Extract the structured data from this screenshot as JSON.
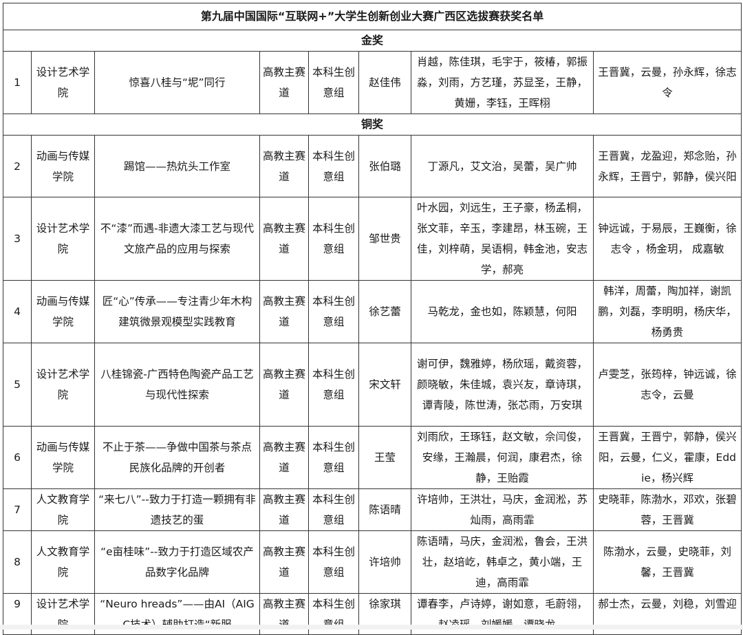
{
  "title": "第九届中国国际“互联网+”大学生创新创业大赛广西区选拔赛获奖名单",
  "sections": [
    {
      "label": "金奖",
      "rows": [
        {
          "no": "1",
          "college": "设计艺术学院",
          "project": "惊喜八桂与“坭”同行",
          "track": "高教主赛道",
          "group": "本科生创意组",
          "leader": "赵佳伟",
          "members": "肖越，陈佳琪，毛宇于，筱椿，郭振淼，刘雨，方艺瑾，苏显圣，王静，黄姗，李钰，王晖栩",
          "mentors": "王晋冀，云曼，孙永辉，徐志令"
        }
      ]
    },
    {
      "label": "铜奖",
      "rows": [
        {
          "no": "2",
          "college": "动画与传媒学院",
          "project": "踢馆——热炕头工作室",
          "track": "高教主赛道",
          "group": "本科生创意组",
          "leader": "张伯璐",
          "members": "丁源凡，艾文治，吴蕾，吴广帅",
          "mentors": "王晋冀，龙盈迎，郑念贻，孙永辉，王晋宁，郭静，侯兴阳"
        },
        {
          "no": "3",
          "college": "设计艺术学院",
          "project": "不“漆”而遇-非遗大漆工艺与现代文旅产品的应用与探索",
          "track": "高教主赛道",
          "group": "本科生创意组",
          "leader": "邹世贵",
          "members": "叶水园，刘远生，王子豪，杨孟桐，张文菲，辛玉，李建昂，林玉碗，王佳，刘梓萌，吴语桐，韩金池，安志学，郝亮",
          "mentors": "钟远诚，于易辰，王巍衡，徐志令 ，杨金玥， 成嘉敏"
        },
        {
          "no": "4",
          "college": "动画与传媒学院",
          "project": "匠“心”传承——专注青少年木构建筑微景观模型实践教育",
          "track": "高教主赛道",
          "group": "本科生创意组",
          "leader": "徐艺蕾",
          "members": "马乾龙，金也如，陈颖慧，何阳",
          "mentors": "韩洋，周蕾，陶加祥，谢凯鹏，刘磊，李明明，杨庆华，杨勇贵"
        },
        {
          "no": "5",
          "college": "设计艺术学院",
          "project": "八桂锦瓷-广西特色陶瓷产品工艺与现代性探索",
          "track": "高教主赛道",
          "group": "本科生创意组",
          "leader": "宋文轩",
          "members": "谢可伊，魏雅婷，杨欣瑶，戴资蓉，颜晓敏，朱佳城，袁兴友，章诗琪，谭青陵，陈世涛，张芯雨，万安琪",
          "mentors": "卢雯芝，张筠梓，钟远诚，徐志令，云曼"
        },
        {
          "no": "6",
          "college": "动画与传媒学院",
          "project": "不止于茶——争做中国茶与茶点民族化品牌的开创者",
          "track": "高教主赛道",
          "group": "本科生创意组",
          "leader": "王莹",
          "members": "刘雨欣，王琢钰，赵文敏，佘闫俊，安缘，王瀚晨，何润，康君杰，徐静，王贻霞",
          "mentors": "王晋冀，王晋宁，郭静，侯兴阳，云曼，仁义，霍康，Eddie，杨兴辉"
        },
        {
          "no": "7",
          "college": "人文教育学院",
          "project": "“来七八”--致力于打造一颗拥有非遗技艺的蛋",
          "track": "高教主赛道",
          "group": "本科生创意组",
          "leader": "陈语晴",
          "members": "许培帅，王洪壮，马庆，金润淞，苏灿雨，高雨霏",
          "mentors": "史晓菲，陈渤水，邓欢，张碧蓉，王晋冀"
        },
        {
          "no": "8",
          "college": "人文教育学院",
          "project": "“e亩桂味”--致力于打造区域农产品数字化品牌",
          "track": "高教主赛道",
          "group": "本科生创意组",
          "leader": "许培帅",
          "members": "陈语晴，马庆，金润淞，鲁会，王洪壮，赵培屹，韩卓之，黄小端，王迪，高雨霏",
          "mentors": "陈渤水，云曼，史晓菲，刘馨，王晋冀"
        },
        {
          "no": "9",
          "college": "设计艺术学院",
          "project": "“Neuro hreads”——由AI（AIGC技术）辅助打造“新服",
          "track": "高教主赛道",
          "group": "本科生创意组",
          "leader": "徐家琪",
          "members": "谭春李，卢诗婷，谢如意，毛蔚翎，赵凌瑶，刘媛媛，谭晓龙，",
          "mentors": "郝士杰，云曼，刘稳，刘雪迎"
        }
      ]
    }
  ]
}
